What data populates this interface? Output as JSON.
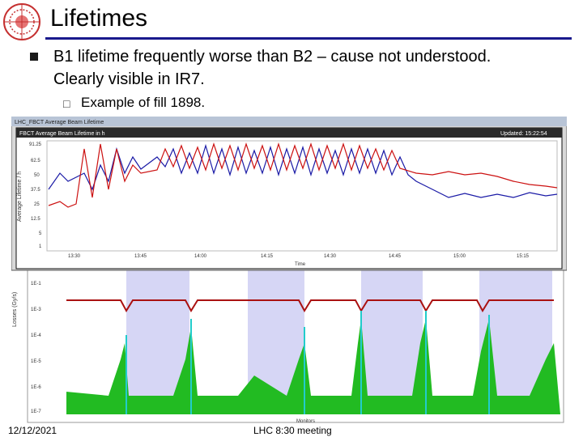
{
  "slide": {
    "title": "Lifetimes",
    "bullet_1": "B1 lifetime frequently worse than B2 – cause not understood. Clearly visible in IR7.",
    "bullet_2": "Example of fill 1898.",
    "footer_date": "12/12/2021",
    "footer_center": "LHC 8:30 meeting"
  },
  "lifetime_plot": {
    "window_title": "LHC_FBCT Average Beam Lifetime",
    "panel_title": "FBCT Average Beam Lifetime in h",
    "updated": "Updated: 15:22:54",
    "ylabel": "Average Lifetime / h",
    "xlabel": "Time",
    "yticks": [
      "91.25",
      "62.5",
      "50",
      "37.5",
      "25",
      "12.5",
      "5",
      "1"
    ],
    "xticks": [
      "13:30",
      "13:45",
      "14:00",
      "14:15",
      "14:30",
      "14:45",
      "15:00",
      "15:15"
    ]
  },
  "losses_plot": {
    "ylabel": "Losses (Gy/s)",
    "xlabel": "Monitors",
    "yticks": [
      "1E-1",
      "1E-3",
      "1E-4",
      "1E-5",
      "1E-6",
      "1E-7"
    ]
  },
  "colors": {
    "title_rule": "#1a1a8c",
    "beam1": "#cc1111",
    "beam2": "#1a1aa6",
    "losses_fill": "#22bb22",
    "losses_peak": "#22cccc",
    "ir_band": "#d6d6f5"
  }
}
